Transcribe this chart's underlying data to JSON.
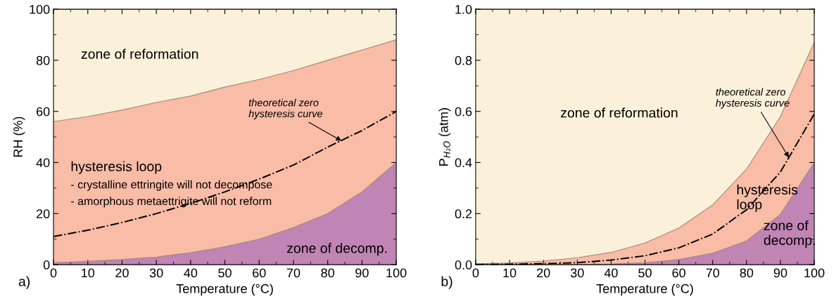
{
  "chart_data": [
    {
      "type": "area",
      "stacked": true,
      "xlabel": "Temperature (°C)",
      "ylabel": "RH (%)",
      "x": [
        0,
        10,
        20,
        30,
        40,
        50,
        60,
        70,
        80,
        90,
        100
      ],
      "xlim": [
        0,
        100
      ],
      "xticks": [
        0,
        10,
        20,
        30,
        40,
        50,
        60,
        70,
        80,
        90,
        100
      ],
      "ylim": [
        0,
        100
      ],
      "yticks": [
        0,
        20,
        40,
        60,
        80,
        100
      ],
      "grid": false,
      "legend": false,
      "series": [
        {
          "color": "#c084b5",
          "values": [
            0.8,
            1.3,
            2,
            3,
            4.7,
            7,
            10,
            14.5,
            20,
            28.5,
            40
          ]
        },
        {
          "color": "#f9bca7",
          "values": [
            55.2,
            56.7,
            58.5,
            60.5,
            61.3,
            62.5,
            62.5,
            61.5,
            60,
            55.5,
            48
          ]
        },
        {
          "color": "#fbf0d9",
          "values": [
            44,
            42,
            39.5,
            36.5,
            34,
            30.5,
            27.5,
            24,
            20,
            16,
            12
          ]
        },
        {
          "type": "line",
          "color": "#000000",
          "line_style": "dashdot",
          "values": [
            11,
            13.5,
            16.5,
            20,
            24,
            28.5,
            33.5,
            39,
            46,
            52.5,
            60
          ]
        }
      ],
      "annotations": [
        "zone of reformation",
        "hysteresis loop",
        "- crystalline ettringite will not decompose",
        "- amorphous metaettrigite will not reform",
        "zone of decomp.",
        {
          "text": "theoretical zero\nhysteresis curve",
          "x": 84,
          "y": 48.5
        },
        "a)"
      ]
    },
    {
      "type": "area",
      "stacked": true,
      "xlabel": "Temperature (°C)",
      "ylabel": "P$_{H₂O}$ (atm)",
      "x": [
        0,
        10,
        20,
        30,
        40,
        50,
        60,
        70,
        80,
        90,
        100
      ],
      "xlim": [
        0,
        100
      ],
      "xticks": [
        0,
        10,
        20,
        30,
        40,
        50,
        60,
        70,
        80,
        90,
        100
      ],
      "ylim": [
        0,
        1.0
      ],
      "yticks": [
        {
          "value": 0,
          "label": "0.0"
        },
        0.2,
        0.4,
        0.6,
        0.8,
        {
          "value": 1,
          "label": "1.0"
        }
      ],
      "grid": false,
      "legend": false,
      "series": [
        {
          "color": "#c084b5",
          "values": [
            0,
            0,
            0,
            0.001,
            0.003,
            0.008,
            0.02,
            0.045,
            0.093,
            0.197,
            0.4
          ]
        },
        {
          "color": "#f9bca7",
          "values": [
            0.003,
            0.007,
            0.014,
            0.026,
            0.045,
            0.077,
            0.123,
            0.189,
            0.281,
            0.383,
            0.47
          ]
        },
        {
          "color": "#fbf0d9",
          "values": [
            0.997,
            0.993,
            0.986,
            0.973,
            0.952,
            0.915,
            0.857,
            0.766,
            0.626,
            0.42,
            0.13
          ]
        },
        {
          "type": "line",
          "color": "#000000",
          "line_style": "dashdot",
          "values": [
            0.001,
            0.002,
            0.004,
            0.008,
            0.018,
            0.035,
            0.066,
            0.12,
            0.215,
            0.363,
            0.59
          ]
        }
      ],
      "annotations": [
        "zone of reformation",
        "hysteresis\nloop",
        "zone of\ndecomp.",
        {
          "text": "theoretical zero\nhysteresis curve",
          "x": 92.5,
          "y": 0.42
        },
        "b)"
      ]
    }
  ]
}
